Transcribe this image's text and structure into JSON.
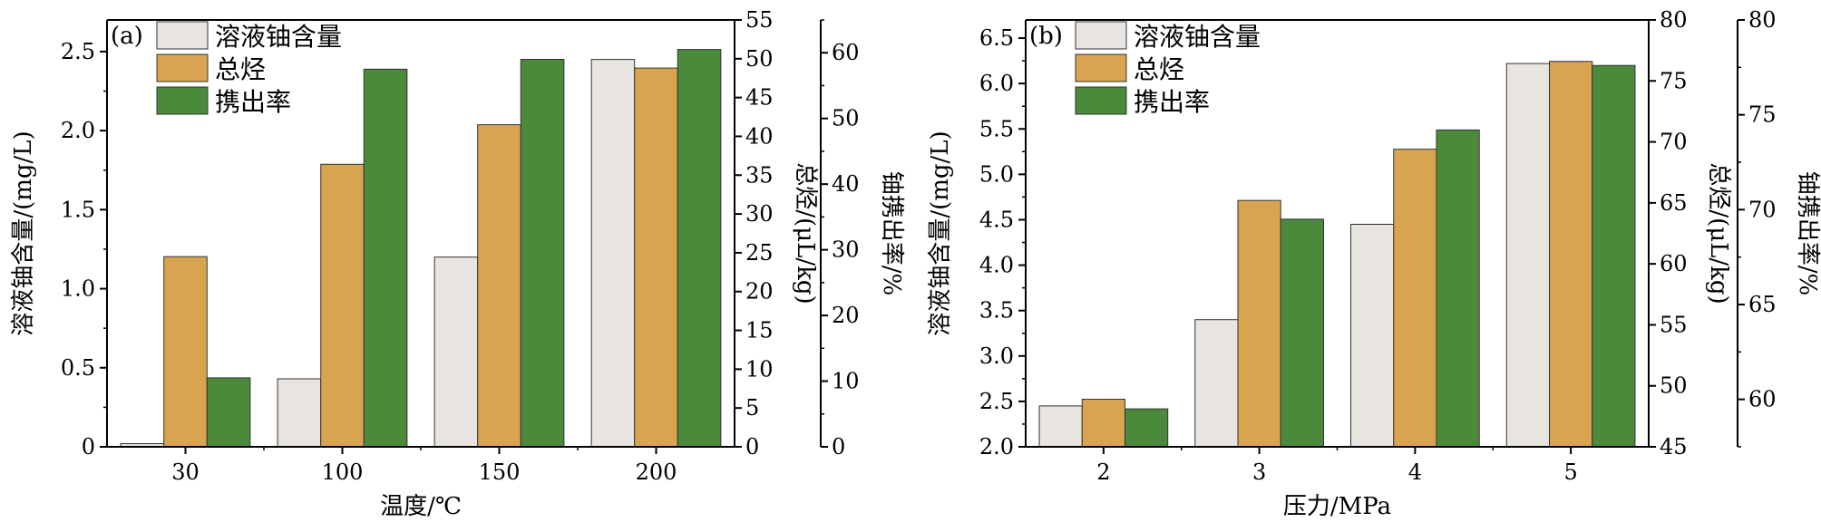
{
  "chart_data": [
    {
      "type": "bar",
      "panel_label": "(a)",
      "xlabel": "温度/℃",
      "categories": [
        "30",
        "100",
        "150",
        "200"
      ],
      "series": [
        {
          "name": "溶液铀含量",
          "axis": "y1",
          "color": "#e8e4e0",
          "values": [
            0.02,
            0.43,
            1.2,
            2.45
          ]
        },
        {
          "name": "总烃",
          "axis": "y2",
          "color": "#d9a450",
          "values": [
            24.5,
            36.4,
            41.5,
            48.8
          ]
        },
        {
          "name": "携出率",
          "axis": "y3",
          "color": "#4a8a3a",
          "values": [
            10.5,
            57.5,
            59.0,
            60.5
          ]
        }
      ],
      "axes": {
        "y1": {
          "label": "溶液铀含量/(mg/L)",
          "lim": [
            0,
            2.7
          ],
          "ticks": [
            0,
            0.5,
            1.0,
            1.5,
            2.0,
            2.5
          ],
          "tick_labels": [
            "0",
            "0.5",
            "1.0",
            "1.5",
            "2.0",
            "2.5"
          ]
        },
        "y2": {
          "label": "总烃/(μL/kg)",
          "lim": [
            0,
            55
          ],
          "ticks": [
            0,
            5,
            10,
            15,
            20,
            25,
            30,
            35,
            40,
            45,
            50,
            55
          ],
          "tick_labels": [
            "0",
            "5",
            "10",
            "15",
            "20",
            "25",
            "30",
            "35",
            "40",
            "45",
            "50",
            "55"
          ]
        },
        "y3": {
          "label": "铀携出率/%",
          "lim": [
            0,
            65
          ],
          "ticks": [
            0,
            10,
            20,
            30,
            40,
            50,
            60
          ],
          "tick_labels": [
            "0",
            "10",
            "20",
            "30",
            "40",
            "50",
            "60"
          ]
        }
      },
      "legend": "top-left",
      "grid": false
    },
    {
      "type": "bar",
      "panel_label": "(b)",
      "xlabel": "压力/MPa",
      "categories": [
        "2",
        "3",
        "4",
        "5"
      ],
      "series": [
        {
          "name": "溶液铀含量",
          "axis": "y1",
          "color": "#e8e4e0",
          "values": [
            2.45,
            3.4,
            4.45,
            6.22
          ]
        },
        {
          "name": "总烃",
          "axis": "y2",
          "color": "#d9a450",
          "values": [
            48.9,
            65.2,
            69.4,
            76.6
          ]
        },
        {
          "name": "携出率",
          "axis": "y3",
          "color": "#4a8a3a",
          "values": [
            59.5,
            69.5,
            74.2,
            77.6
          ]
        }
      ],
      "axes": {
        "y1": {
          "label": "溶液铀含量/(mg/L)",
          "lim": [
            2.0,
            6.7
          ],
          "ticks": [
            2.0,
            2.5,
            3.0,
            3.5,
            4.0,
            4.5,
            5.0,
            5.5,
            6.0,
            6.5
          ],
          "tick_labels": [
            "2.0",
            "2.5",
            "3.0",
            "3.5",
            "4.0",
            "4.5",
            "5.0",
            "5.5",
            "6.0",
            "6.5"
          ]
        },
        "y2": {
          "label": "总烃/(μL/kg)",
          "lim": [
            45,
            80
          ],
          "ticks": [
            45,
            50,
            55,
            60,
            65,
            70,
            75,
            80
          ],
          "tick_labels": [
            "45",
            "50",
            "55",
            "60",
            "65",
            "70",
            "75",
            "80"
          ]
        },
        "y3": {
          "label": "铀携出率/%",
          "lim": [
            57.5,
            80
          ],
          "ticks": [
            60,
            65,
            70,
            75,
            80
          ],
          "tick_labels": [
            "60",
            "65",
            "70",
            "75",
            "80"
          ]
        }
      },
      "legend": "top-left",
      "grid": false
    }
  ]
}
